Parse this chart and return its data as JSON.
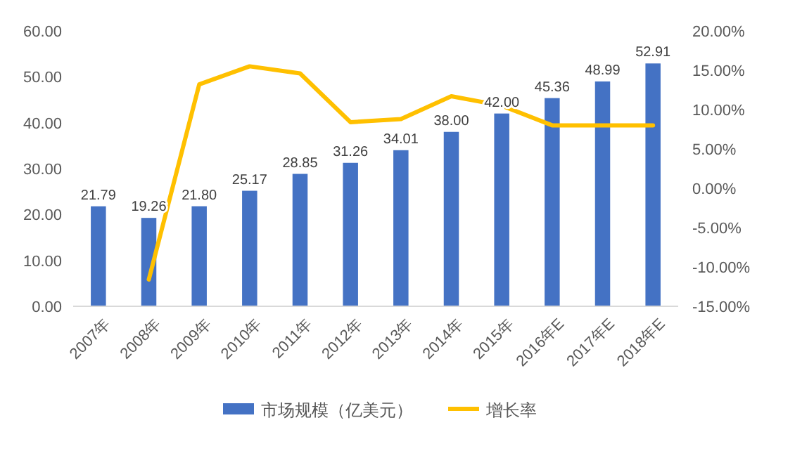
{
  "chart_data": {
    "type": "bar",
    "categories": [
      "2007年",
      "2008年",
      "2009年",
      "2010年",
      "2011年",
      "2012年",
      "2013年",
      "2014年",
      "2015年",
      "2016年E",
      "2017年E",
      "2018年E"
    ],
    "series": [
      {
        "name": "市场规模（亿美元）",
        "color": "#4472c4",
        "values": [
          21.79,
          19.26,
          21.8,
          25.17,
          28.85,
          31.26,
          34.01,
          38.0,
          42.0,
          45.36,
          48.99,
          52.91
        ],
        "value_labels": [
          "21.79",
          "19.26",
          "21.80",
          "25.17",
          "28.85",
          "31.26",
          "34.01",
          "38.00",
          "42.00",
          "45.36",
          "48.99",
          "52.91"
        ]
      },
      {
        "name": "增长率",
        "type": "line",
        "axis": "y2",
        "color": "#ffc000",
        "values": [
          null,
          -11.6,
          13.2,
          15.5,
          14.6,
          8.4,
          8.8,
          11.7,
          10.5,
          8.0,
          8.0,
          8.0
        ]
      }
    ],
    "ylim": [
      0,
      60
    ],
    "yticks": [
      {
        "value": 0,
        "label": "0.00"
      },
      {
        "value": 10,
        "label": "10.00"
      },
      {
        "value": 20,
        "label": "20.00"
      },
      {
        "value": 30,
        "label": "30.00"
      },
      {
        "value": 40,
        "label": "40.00"
      },
      {
        "value": 50,
        "label": "50.00"
      },
      {
        "value": 60,
        "label": "60.00"
      }
    ],
    "y2lim": [
      -15,
      20
    ],
    "y2ticks": [
      {
        "value": -15,
        "label": "-15.00%"
      },
      {
        "value": -10,
        "label": "-10.00%"
      },
      {
        "value": -5,
        "label": "-5.00%"
      },
      {
        "value": 0,
        "label": "0.00%"
      },
      {
        "value": 5,
        "label": "5.00%"
      },
      {
        "value": 10,
        "label": "10.00%"
      },
      {
        "value": 15,
        "label": "15.00%"
      },
      {
        "value": 20,
        "label": "20.00%"
      }
    ],
    "grid": false,
    "legend": "bottom",
    "marker": "none",
    "line_style": "solid"
  }
}
